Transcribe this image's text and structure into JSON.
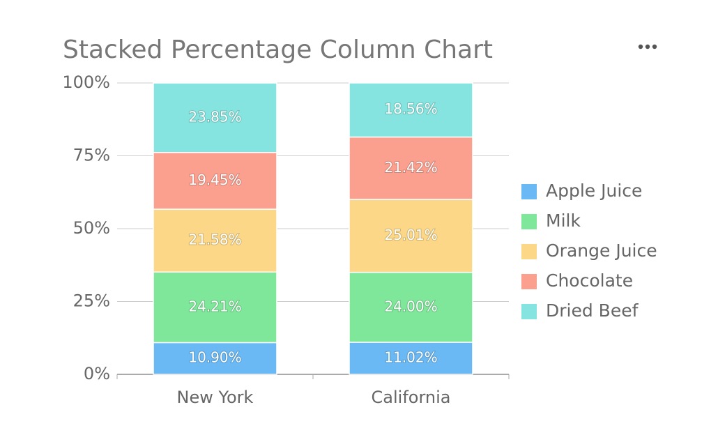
{
  "chart_data": {
    "type": "stacked-percentage-bar",
    "title": "Stacked Percentage Column Chart",
    "categories": [
      "New York",
      "California"
    ],
    "series": [
      {
        "name": "Apple Juice",
        "color": "#6bb9f4",
        "values": [
          10.9,
          11.02
        ],
        "value_labels": [
          "10.90%",
          "11.02%"
        ]
      },
      {
        "name": "Milk",
        "color": "#7fe79a",
        "values": [
          24.21,
          24.0
        ],
        "value_labels": [
          "24.21%",
          "24.00%"
        ]
      },
      {
        "name": "Orange Juice",
        "color": "#fbd787",
        "values": [
          21.58,
          25.01
        ],
        "value_labels": [
          "21.58%",
          "25.01%"
        ]
      },
      {
        "name": "Chocolate",
        "color": "#fb9f8f",
        "values": [
          19.45,
          21.42
        ],
        "value_labels": [
          "19.45%",
          "21.42%"
        ]
      },
      {
        "name": "Dried Beef",
        "color": "#85e4df",
        "values": [
          23.85,
          18.56
        ],
        "value_labels": [
          "23.85%",
          "18.56%"
        ]
      }
    ],
    "ylim": [
      0,
      100
    ],
    "yticks": [
      {
        "value": 0,
        "label": "0%"
      },
      {
        "value": 25,
        "label": "25%"
      },
      {
        "value": 50,
        "label": "50%"
      },
      {
        "value": 75,
        "label": "75%"
      },
      {
        "value": 100,
        "label": "100%"
      }
    ],
    "grid": true,
    "legend": "right"
  }
}
